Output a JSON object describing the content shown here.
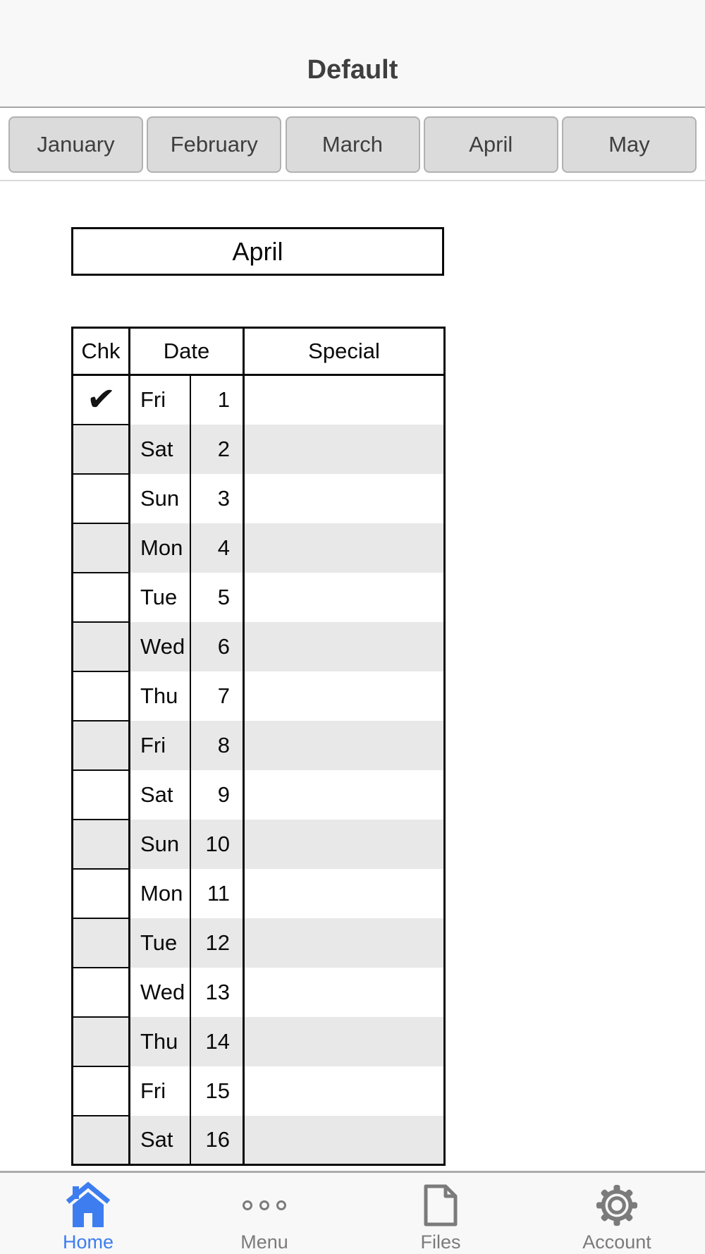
{
  "header": {
    "title": "Default"
  },
  "month_bar": {
    "months": [
      "January",
      "February",
      "March",
      "April",
      "May"
    ]
  },
  "month_label": "April",
  "table": {
    "columns": {
      "chk": "Chk",
      "date": "Date",
      "special": "Special"
    },
    "check_glyph": "✔",
    "rows": [
      {
        "checked": true,
        "day": "Fri",
        "num": "1",
        "special": ""
      },
      {
        "checked": false,
        "day": "Sat",
        "num": "2",
        "special": ""
      },
      {
        "checked": false,
        "day": "Sun",
        "num": "3",
        "special": ""
      },
      {
        "checked": false,
        "day": "Mon",
        "num": "4",
        "special": ""
      },
      {
        "checked": false,
        "day": "Tue",
        "num": "5",
        "special": ""
      },
      {
        "checked": false,
        "day": "Wed",
        "num": "6",
        "special": ""
      },
      {
        "checked": false,
        "day": "Thu",
        "num": "7",
        "special": ""
      },
      {
        "checked": false,
        "day": "Fri",
        "num": "8",
        "special": ""
      },
      {
        "checked": false,
        "day": "Sat",
        "num": "9",
        "special": ""
      },
      {
        "checked": false,
        "day": "Sun",
        "num": "10",
        "special": ""
      },
      {
        "checked": false,
        "day": "Mon",
        "num": "11",
        "special": ""
      },
      {
        "checked": false,
        "day": "Tue",
        "num": "12",
        "special": ""
      },
      {
        "checked": false,
        "day": "Wed",
        "num": "13",
        "special": ""
      },
      {
        "checked": false,
        "day": "Thu",
        "num": "14",
        "special": ""
      },
      {
        "checked": false,
        "day": "Fri",
        "num": "15",
        "special": ""
      },
      {
        "checked": false,
        "day": "Sat",
        "num": "16",
        "special": ""
      }
    ]
  },
  "tab_bar": {
    "items": [
      {
        "label": "Home",
        "icon": "home-icon",
        "active": true
      },
      {
        "label": "Menu",
        "icon": "menu-icon",
        "active": false
      },
      {
        "label": "Files",
        "icon": "files-icon",
        "active": false
      },
      {
        "label": "Account",
        "icon": "account-icon",
        "active": false
      }
    ]
  },
  "colors": {
    "accent_blue": "#3d7df0",
    "icon_gray": "#7b7b7b",
    "stripe_gray": "#e8e8e8",
    "header_bg": "#f8f8f8",
    "button_bg": "#dbdbdb",
    "table_border": "#0a0a0a"
  }
}
